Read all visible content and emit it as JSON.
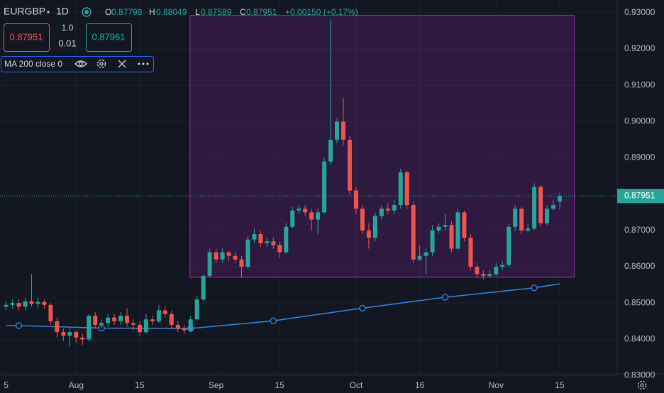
{
  "header": {
    "symbol": "EURGBP",
    "interval": "1D",
    "ohlc_prefixes": [
      "O",
      "H",
      "L",
      "C"
    ],
    "change_label": "+0.00150 (+0.17%)"
  },
  "trade_panel": {
    "qty_top": "1.0",
    "qty": "0.01",
    "buy": "0.87961"
  },
  "chart_data": {
    "type": "candlestick",
    "categories": [
      "5",
      null,
      null,
      null,
      null,
      null,
      null,
      null,
      null,
      null,
      null,
      "Aug",
      null,
      null,
      null,
      null,
      null,
      null,
      null,
      null,
      null,
      "15",
      null,
      null,
      null,
      null,
      null,
      null,
      null,
      null,
      null,
      null,
      null,
      "Sep",
      null,
      null,
      null,
      null,
      null,
      null,
      null,
      null,
      null,
      "15",
      null,
      null,
      null,
      null,
      null,
      null,
      null,
      null,
      null,
      null,
      null,
      "Oct",
      null,
      null,
      null,
      null,
      null,
      null,
      null,
      null,
      null,
      "16",
      null,
      null,
      null,
      null,
      null,
      null,
      null,
      null,
      null,
      null,
      null,
      "Nov",
      null,
      null,
      null,
      null,
      null,
      null,
      null,
      null,
      null,
      "15"
    ],
    "open": [
      0.849,
      0.8495,
      0.85,
      0.849,
      0.8505,
      0.8498,
      0.8503,
      0.8495,
      0.845,
      0.842,
      0.841,
      0.842,
      0.8405,
      0.84,
      0.8465,
      0.844,
      0.8445,
      0.846,
      0.845,
      0.8465,
      0.8445,
      0.844,
      0.842,
      0.8455,
      0.845,
      0.848,
      0.847,
      0.844,
      0.843,
      0.8425,
      0.8455,
      0.851,
      0.8575,
      0.864,
      0.862,
      0.864,
      0.863,
      0.862,
      0.86,
      0.8675,
      0.869,
      0.8665,
      0.867,
      0.866,
      0.864,
      0.871,
      0.8755,
      0.876,
      0.875,
      0.873,
      0.875,
      0.889,
      0.895,
      0.9,
      0.895,
      0.881,
      0.876,
      0.87,
      0.868,
      0.874,
      0.876,
      0.8755,
      0.877,
      0.886,
      0.877,
      0.862,
      0.863,
      0.864,
      0.87,
      0.871,
      0.8715,
      0.865,
      0.875,
      0.868,
      0.86,
      0.858,
      0.8575,
      0.858,
      0.86,
      0.8605,
      0.871,
      0.876,
      0.87,
      0.8705,
      0.882,
      0.872,
      0.876,
      0.87798
    ],
    "high": [
      0.8505,
      0.851,
      0.851,
      0.8515,
      0.858,
      0.8515,
      0.851,
      0.85,
      0.846,
      0.843,
      0.843,
      0.8425,
      0.8415,
      0.847,
      0.8475,
      0.8455,
      0.847,
      0.847,
      0.8475,
      0.8485,
      0.8455,
      0.845,
      0.847,
      0.8465,
      0.8495,
      0.849,
      0.848,
      0.845,
      0.844,
      0.8465,
      0.852,
      0.858,
      0.865,
      0.865,
      0.865,
      0.8645,
      0.864,
      0.863,
      0.8685,
      0.8705,
      0.87,
      0.868,
      0.868,
      0.867,
      0.872,
      0.8765,
      0.877,
      0.877,
      0.876,
      0.876,
      0.89,
      0.928,
      0.901,
      0.9065,
      0.896,
      0.882,
      0.877,
      0.872,
      0.875,
      0.877,
      0.8775,
      0.8785,
      0.887,
      0.8865,
      0.878,
      0.866,
      0.865,
      0.8715,
      0.872,
      0.8745,
      0.8725,
      0.876,
      0.8755,
      0.869,
      0.861,
      0.859,
      0.859,
      0.861,
      0.8615,
      0.872,
      0.877,
      0.8765,
      0.872,
      0.883,
      0.8825,
      0.877,
      0.8785,
      0.88049
    ],
    "low": [
      0.848,
      0.8485,
      0.848,
      0.848,
      0.849,
      0.8485,
      0.8485,
      0.844,
      0.8405,
      0.8395,
      0.838,
      0.839,
      0.8385,
      0.8395,
      0.843,
      0.843,
      0.8435,
      0.844,
      0.844,
      0.8435,
      0.8425,
      0.841,
      0.8415,
      0.844,
      0.8445,
      0.846,
      0.843,
      0.842,
      0.8415,
      0.842,
      0.845,
      0.8505,
      0.857,
      0.861,
      0.861,
      0.8615,
      0.861,
      0.857,
      0.8595,
      0.8665,
      0.8655,
      0.8655,
      0.865,
      0.8625,
      0.8635,
      0.8705,
      0.8745,
      0.874,
      0.87,
      0.869,
      0.8745,
      0.888,
      0.894,
      0.8935,
      0.88,
      0.8745,
      0.869,
      0.865,
      0.867,
      0.873,
      0.8745,
      0.8745,
      0.876,
      0.876,
      0.861,
      0.8615,
      0.858,
      0.863,
      0.869,
      0.87,
      0.864,
      0.8645,
      0.867,
      0.859,
      0.857,
      0.8565,
      0.857,
      0.8575,
      0.859,
      0.86,
      0.87,
      0.869,
      0.8695,
      0.87,
      0.871,
      0.8715,
      0.8755,
      0.87589
    ],
    "close": [
      0.8495,
      0.85,
      0.849,
      0.8505,
      0.8498,
      0.8503,
      0.8495,
      0.845,
      0.842,
      0.841,
      0.842,
      0.8405,
      0.84,
      0.8465,
      0.844,
      0.8445,
      0.846,
      0.845,
      0.8465,
      0.8445,
      0.844,
      0.842,
      0.8455,
      0.845,
      0.848,
      0.847,
      0.844,
      0.843,
      0.8425,
      0.8455,
      0.851,
      0.8575,
      0.864,
      0.862,
      0.864,
      0.863,
      0.862,
      0.86,
      0.8675,
      0.869,
      0.8665,
      0.867,
      0.866,
      0.864,
      0.871,
      0.8755,
      0.876,
      0.875,
      0.873,
      0.875,
      0.889,
      0.895,
      0.9,
      0.895,
      0.881,
      0.876,
      0.87,
      0.868,
      0.874,
      0.876,
      0.8755,
      0.877,
      0.886,
      0.877,
      0.862,
      0.863,
      0.864,
      0.87,
      0.871,
      0.8715,
      0.865,
      0.875,
      0.868,
      0.86,
      0.858,
      0.8575,
      0.858,
      0.86,
      0.8605,
      0.871,
      0.876,
      0.87,
      0.8705,
      0.882,
      0.872,
      0.876,
      0.877,
      0.87951
    ],
    "up_color": "#26a69a",
    "down_color": "#ef5350",
    "ma": {
      "name": "MA 200 close 0",
      "color": "#2e86de",
      "x": [
        0,
        2,
        15,
        29,
        42,
        56,
        69,
        83,
        87
      ],
      "values": [
        0.8438,
        0.8438,
        0.8431,
        0.843,
        0.8451,
        0.8486,
        0.8516,
        0.8542,
        0.8553
      ]
    },
    "range_box": {
      "x": [
        28.9,
        89.3
      ],
      "y": [
        0.9293,
        0.8571
      ],
      "color": "#9c27b0"
    },
    "ylim": [
      0.8305,
      0.9335
    ],
    "yticks": [
      {
        "value": 0.93,
        "label": "0.93000"
      },
      {
        "value": 0.92,
        "label": "0.92000"
      },
      {
        "value": 0.91,
        "label": "0.91000"
      },
      {
        "value": 0.9,
        "label": "0.90000"
      },
      {
        "value": 0.89,
        "label": "0.89000"
      },
      {
        "value": 0.88,
        "label": "0.88000"
      },
      {
        "value": 0.87,
        "label": "0.87000"
      },
      {
        "value": 0.86,
        "label": "0.86000"
      },
      {
        "value": 0.85,
        "label": "0.85000"
      },
      {
        "value": 0.84,
        "label": "0.84000"
      },
      {
        "value": 0.83,
        "label": "0.83000"
      }
    ],
    "grid": true
  }
}
